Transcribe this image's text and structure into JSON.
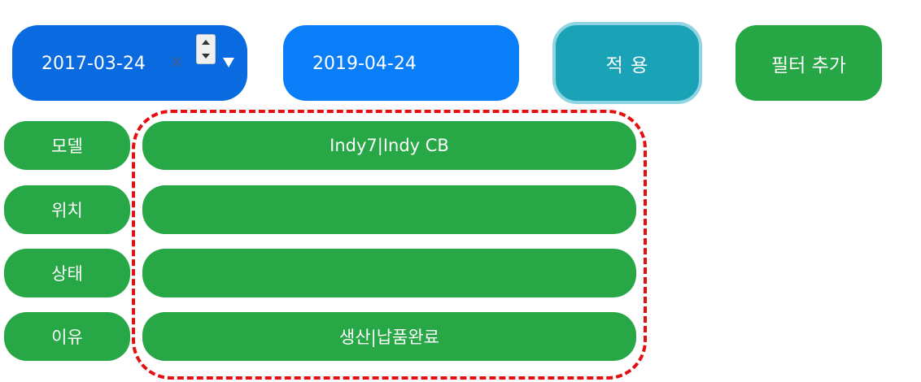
{
  "toolbar": {
    "start_date": "2017-03-24",
    "clear_glyph": "×",
    "end_date": "2019-04-24",
    "apply_label": "적 용",
    "add_filter_label": "필터 추가"
  },
  "filters": [
    {
      "label": "모델",
      "value": "Indy7|Indy CB"
    },
    {
      "label": "위치",
      "value": ""
    },
    {
      "label": "상태",
      "value": ""
    },
    {
      "label": "이유",
      "value": "생산|납품완료"
    }
  ],
  "colors": {
    "start_date_bg": "#0a6adf",
    "end_date_bg": "#0a7df8",
    "apply_bg": "#1aa3b6",
    "green": "#27a745",
    "highlight_frame": "#e21010"
  }
}
